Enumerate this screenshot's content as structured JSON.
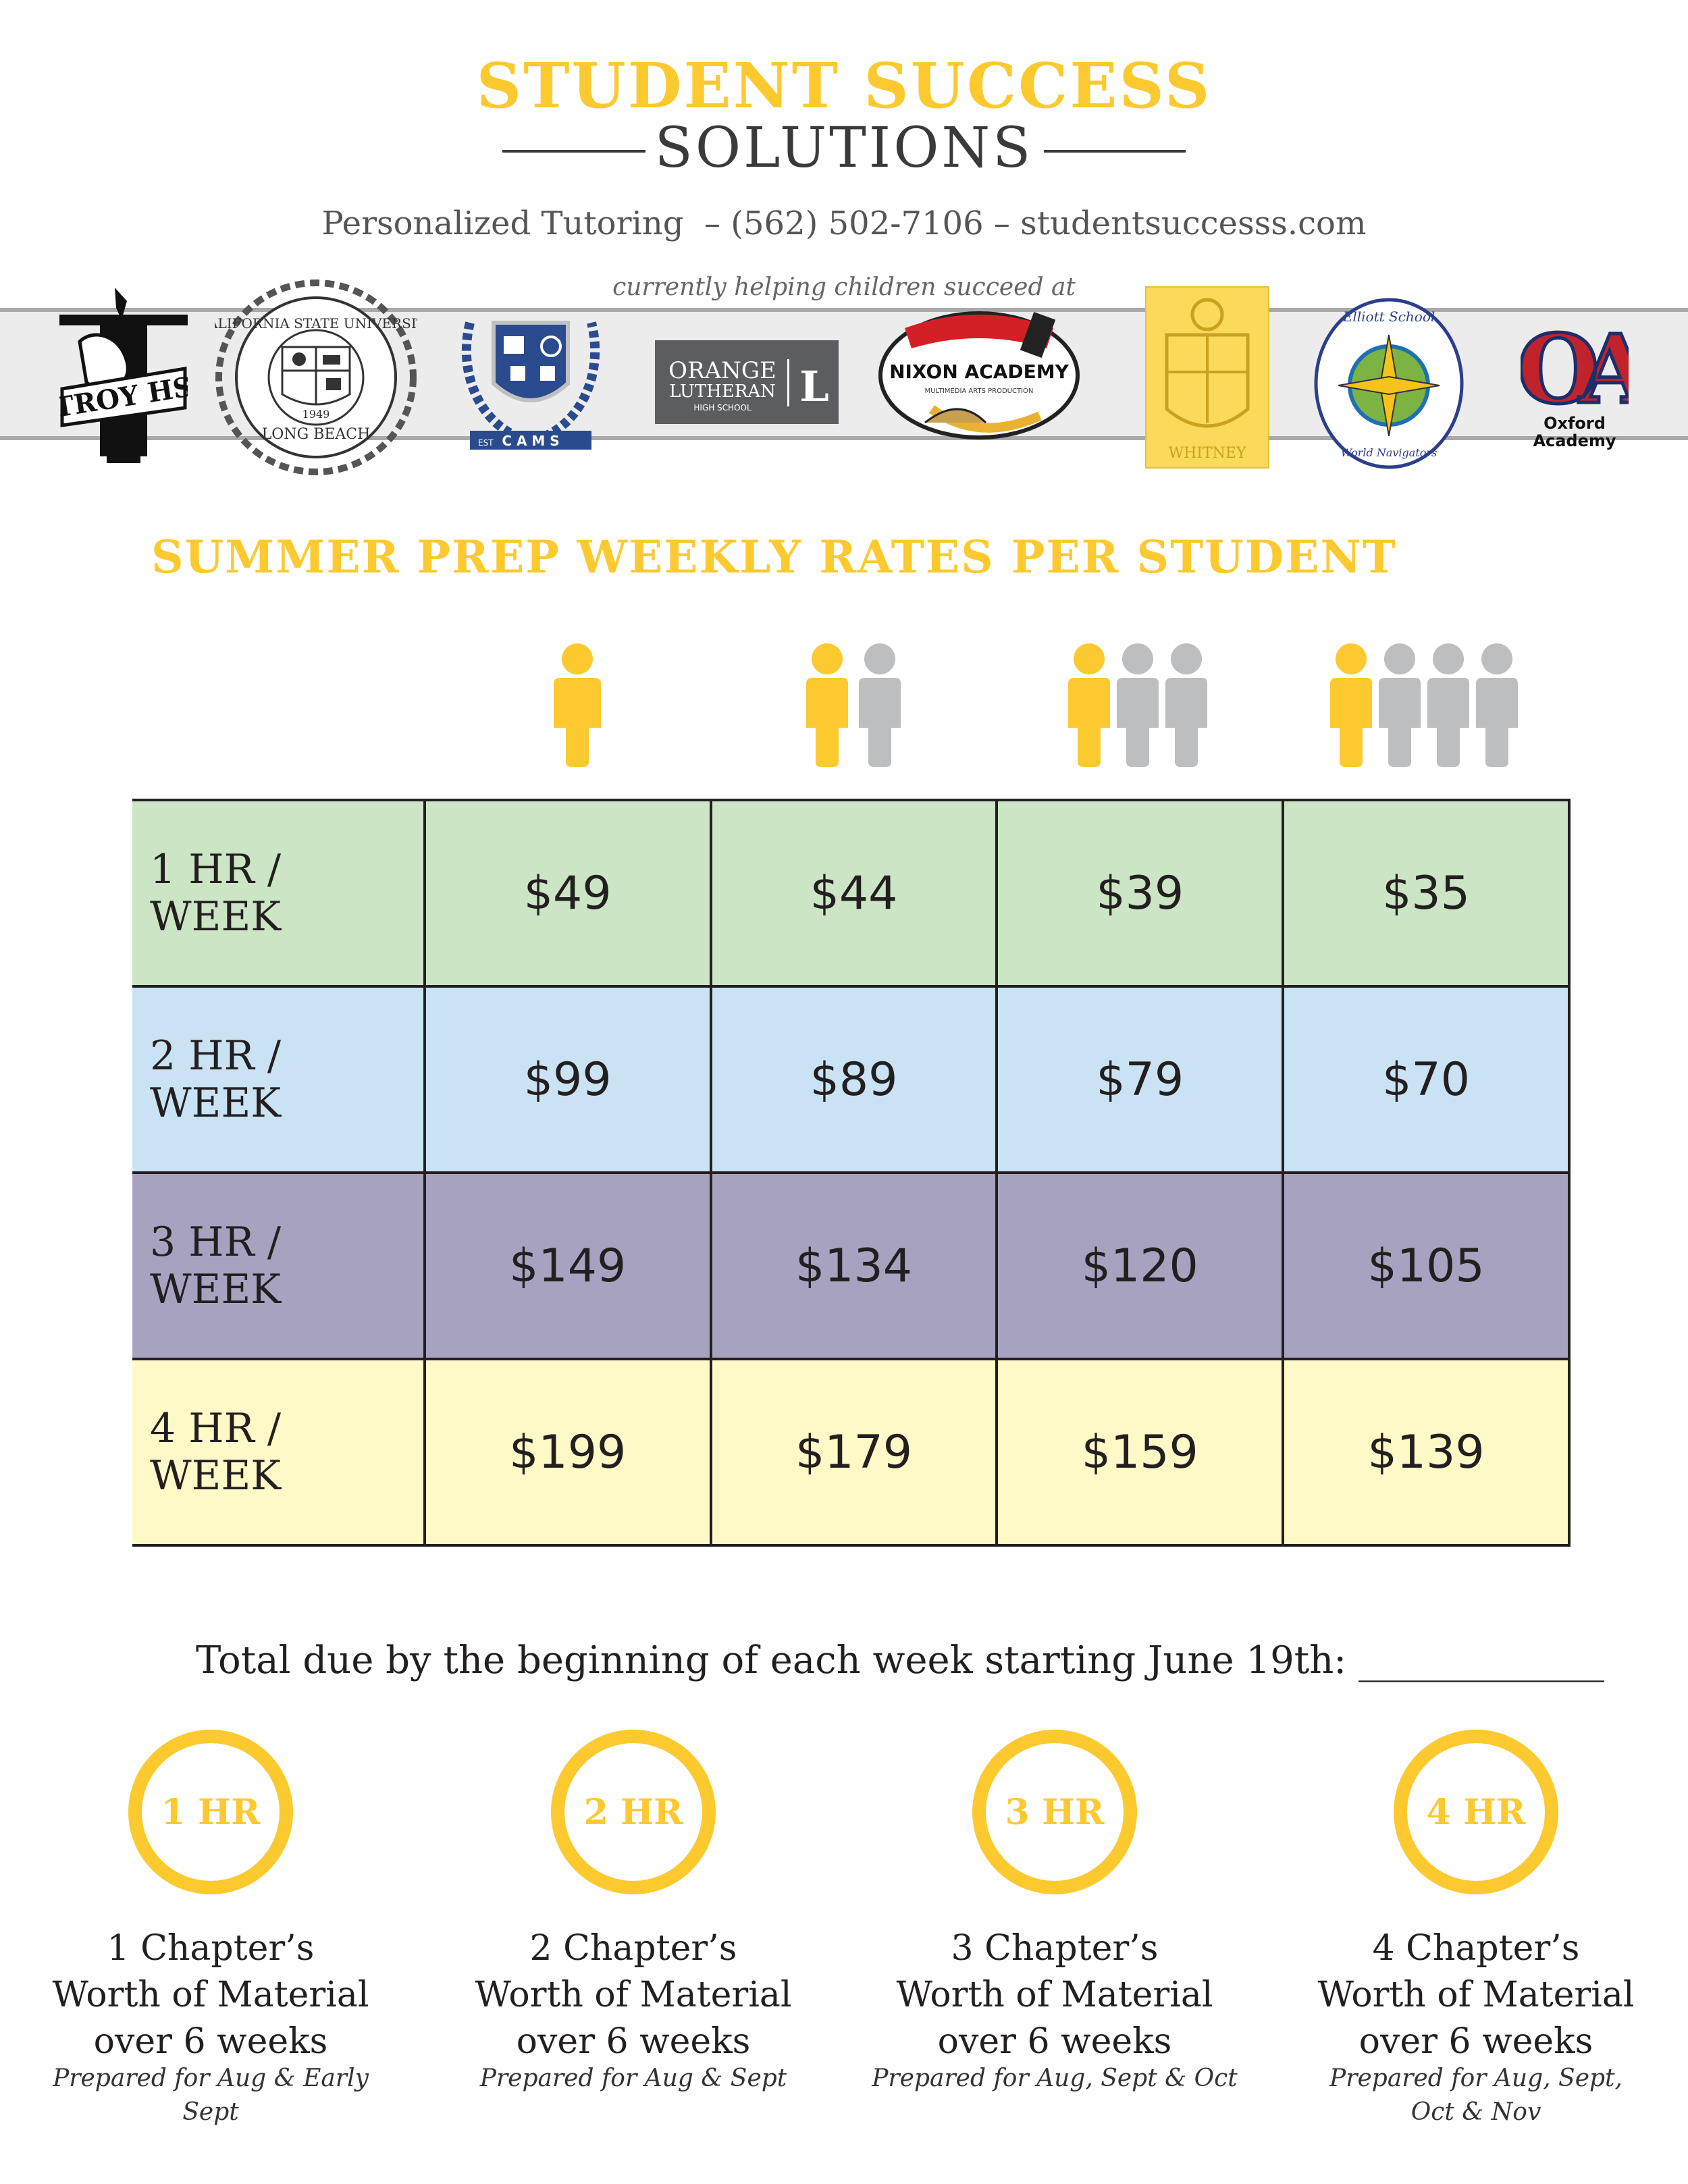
{
  "header": {
    "title_line1": "STUDENT SUCCESS",
    "title_line2": "SOLUTIONS",
    "contact": "Personalized Tutoring  – (562) 502-7106 – studentsuccesss.com",
    "helping": "currently helping children succeed at"
  },
  "logos": {
    "troy": "TROY HS",
    "csulb_top": "CALIFORNIA STATE UNIVERSITY",
    "csulb_year": "1949",
    "csulb_bottom": "LONG BEACH",
    "cams": "C A M S",
    "cams_est": "EST",
    "orange_line1": "ORANGE",
    "orange_line2": "LUTHERAN",
    "orange_line3": "HIGH SCHOOL",
    "orange_mark": "L",
    "nixon": "NIXON ACADEMY",
    "nixon_sub": "MULTIMEDIA ARTS PRODUCTION",
    "whitney": "WHITNEY",
    "elliott_top": "Elliott School",
    "elliott_bottom": "World Navigators",
    "oxford_mark": "OA",
    "oxford_name": "Oxford Academy"
  },
  "section_title": "SUMMER PREP WEEKLY RATES PER STUDENT",
  "colors": {
    "accent": "#fcc92f",
    "person_primary": "#fcc92f",
    "person_secondary": "#bcbec0"
  },
  "table": {
    "rows": [
      {
        "label": "1 HR / WEEK",
        "prices": [
          "$49",
          "$44",
          "$39",
          "$35"
        ],
        "color": "#cce5c4"
      },
      {
        "label": "2 HR / WEEK",
        "prices": [
          "$99",
          "$89",
          "$79",
          "$70"
        ],
        "color": "#cae3f4"
      },
      {
        "label": "3 HR / WEEK",
        "prices": [
          "$149",
          "$134",
          "$120",
          "$105"
        ],
        "color": "#a8a2c1"
      },
      {
        "label": "4 HR / WEEK",
        "prices": [
          "$199",
          "$179",
          "$159",
          "$139"
        ],
        "color": "#fef9c6"
      }
    ]
  },
  "total_line": "Total due by the beginning of each week starting June 19th: _____________",
  "plans": [
    {
      "badge": "1 HR",
      "line1": "1 Chapter’s",
      "line2": "Worth of Material",
      "line3": "over 6 weeks",
      "prep1": "Prepared for Aug & Early Sept",
      "prep2": ""
    },
    {
      "badge": "2 HR",
      "line1": "2 Chapter’s",
      "line2": "Worth of Material",
      "line3": "over 6 weeks",
      "prep1": "Prepared for Aug & Sept",
      "prep2": ""
    },
    {
      "badge": "3 HR",
      "line1": "3 Chapter’s",
      "line2": "Worth of Material",
      "line3": "over 6 weeks",
      "prep1": "Prepared for Aug, Sept & Oct",
      "prep2": ""
    },
    {
      "badge": "4 HR",
      "line1": "4 Chapter’s",
      "line2": "Worth of Material",
      "line3": "over 6 weeks",
      "prep1": "Prepared for Aug, Sept,",
      "prep2": "Oct & Nov"
    }
  ]
}
